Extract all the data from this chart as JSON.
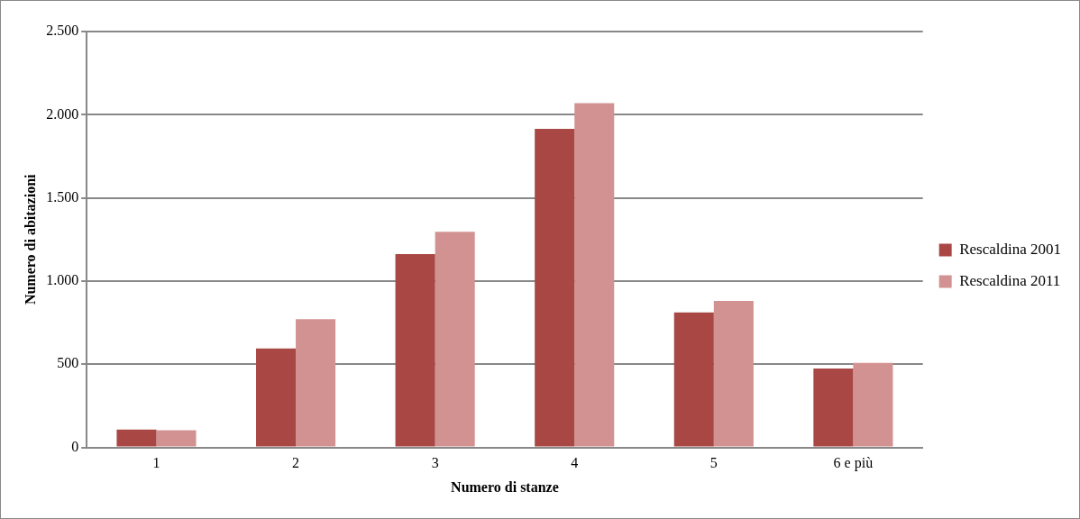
{
  "chart_data": {
    "type": "bar",
    "xlabel": "Numero di stanze",
    "ylabel": "Numero di abitazioni",
    "categories": [
      "1",
      "2",
      "3",
      "4",
      "5",
      "6 e più"
    ],
    "series": [
      {
        "name": "Rescaldina 2001",
        "color": "#a94744",
        "values": [
          107,
          595,
          1162,
          1915,
          811,
          475
        ]
      },
      {
        "name": "Rescaldina 2011",
        "color": "#d29291",
        "values": [
          103,
          771,
          1296,
          2069,
          881,
          508
        ]
      }
    ],
    "ylim": [
      0,
      2500
    ],
    "yticks": [
      0,
      {
        "value": 500,
        "label": "500"
      },
      {
        "value": 1000,
        "label": "1.000"
      },
      {
        "value": 1500,
        "label": "1.500"
      },
      {
        "value": 2000,
        "label": "2.000"
      },
      {
        "value": 2500,
        "label": "2.500"
      }
    ],
    "grid": "y",
    "legend": "right"
  }
}
